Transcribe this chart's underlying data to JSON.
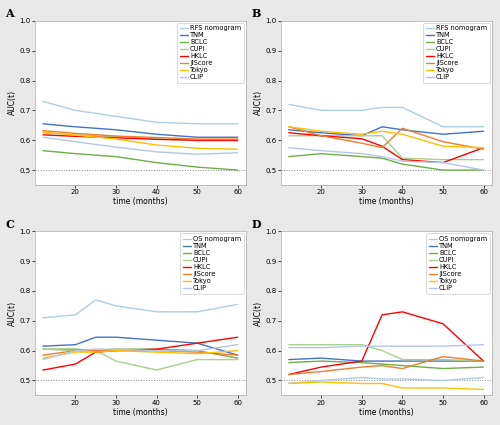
{
  "panels": [
    {
      "label": "A",
      "xlabel": "time (months)",
      "ylabel": "AUC(t)",
      "xlim": [
        10,
        62
      ],
      "ylim": [
        0.45,
        1.0
      ],
      "yticks": [
        0.5,
        0.6,
        0.7,
        0.8,
        0.9,
        1.0
      ],
      "xticks": [
        20,
        30,
        40,
        50,
        60
      ],
      "hline": 0.5,
      "series": [
        {
          "name": "RFS nomogram",
          "color": "#AECDE1",
          "lw": 1.0,
          "x": [
            12,
            20,
            30,
            40,
            50,
            60
          ],
          "y": [
            0.73,
            0.7,
            0.68,
            0.66,
            0.655,
            0.655
          ]
        },
        {
          "name": "TNM",
          "color": "#4472C4",
          "lw": 1.0,
          "x": [
            12,
            20,
            30,
            40,
            50,
            60
          ],
          "y": [
            0.655,
            0.645,
            0.635,
            0.62,
            0.61,
            0.61
          ]
        },
        {
          "name": "BCLC",
          "color": "#70AD47",
          "lw": 1.0,
          "x": [
            12,
            20,
            30,
            40,
            50,
            60
          ],
          "y": [
            0.565,
            0.555,
            0.545,
            0.525,
            0.51,
            0.5
          ]
        },
        {
          "name": "CUPI",
          "color": "#A9D18E",
          "lw": 1.0,
          "x": [
            12,
            20,
            30,
            40,
            50,
            60
          ],
          "y": [
            0.625,
            0.618,
            0.612,
            0.605,
            0.598,
            0.598
          ]
        },
        {
          "name": "HKLC",
          "color": "#FF0000",
          "lw": 1.0,
          "x": [
            12,
            20,
            30,
            40,
            50,
            60
          ],
          "y": [
            0.618,
            0.613,
            0.608,
            0.603,
            0.6,
            0.6
          ]
        },
        {
          "name": "JIScore",
          "color": "#ED7D31",
          "lw": 1.0,
          "x": [
            12,
            20,
            30,
            40,
            50,
            60
          ],
          "y": [
            0.632,
            0.623,
            0.614,
            0.609,
            0.604,
            0.604
          ]
        },
        {
          "name": "Tokyo",
          "color": "#FFC000",
          "lw": 1.0,
          "x": [
            12,
            20,
            30,
            40,
            50,
            60
          ],
          "y": [
            0.628,
            0.617,
            0.604,
            0.584,
            0.573,
            0.57
          ]
        },
        {
          "name": "CLIP",
          "color": "#B4C7E7",
          "lw": 1.0,
          "x": [
            12,
            20,
            30,
            40,
            50,
            60
          ],
          "y": [
            0.61,
            0.595,
            0.577,
            0.561,
            0.553,
            0.558
          ]
        }
      ]
    },
    {
      "label": "B",
      "xlabel": "time (months)",
      "ylabel": "AUC(t)",
      "xlim": [
        10,
        62
      ],
      "ylim": [
        0.45,
        1.0
      ],
      "yticks": [
        0.5,
        0.6,
        0.7,
        0.8,
        0.9,
        1.0
      ],
      "xticks": [
        20,
        30,
        40,
        50,
        60
      ],
      "hline": 0.5,
      "series": [
        {
          "name": "RFS nomogram",
          "color": "#AECDE1",
          "lw": 1.0,
          "x": [
            12,
            20,
            30,
            35,
            40,
            50,
            60
          ],
          "y": [
            0.72,
            0.7,
            0.7,
            0.71,
            0.71,
            0.645,
            0.645
          ]
        },
        {
          "name": "TNM",
          "color": "#4472C4",
          "lw": 1.0,
          "x": [
            12,
            20,
            30,
            35,
            40,
            50,
            60
          ],
          "y": [
            0.635,
            0.625,
            0.615,
            0.645,
            0.635,
            0.62,
            0.63
          ]
        },
        {
          "name": "BCLC",
          "color": "#70AD47",
          "lw": 1.0,
          "x": [
            12,
            20,
            30,
            35,
            40,
            50,
            60
          ],
          "y": [
            0.545,
            0.555,
            0.545,
            0.54,
            0.52,
            0.5,
            0.5
          ]
        },
        {
          "name": "CUPI",
          "color": "#A9D18E",
          "lw": 1.0,
          "x": [
            12,
            20,
            30,
            35,
            40,
            50,
            60
          ],
          "y": [
            0.615,
            0.615,
            0.615,
            0.615,
            0.54,
            0.535,
            0.535
          ]
        },
        {
          "name": "HKLC",
          "color": "#FF0000",
          "lw": 1.0,
          "x": [
            12,
            20,
            30,
            35,
            40,
            50,
            60
          ],
          "y": [
            0.625,
            0.615,
            0.605,
            0.58,
            0.535,
            0.525,
            0.575
          ]
        },
        {
          "name": "JIScore",
          "color": "#ED7D31",
          "lw": 1.0,
          "x": [
            12,
            20,
            30,
            35,
            40,
            50,
            60
          ],
          "y": [
            0.645,
            0.615,
            0.59,
            0.575,
            0.64,
            0.595,
            0.57
          ]
        },
        {
          "name": "Tokyo",
          "color": "#FFC000",
          "lw": 1.0,
          "x": [
            12,
            20,
            30,
            35,
            40,
            50,
            60
          ],
          "y": [
            0.645,
            0.63,
            0.62,
            0.63,
            0.62,
            0.58,
            0.575
          ]
        },
        {
          "name": "CLIP",
          "color": "#B4C7E7",
          "lw": 1.0,
          "x": [
            12,
            20,
            30,
            35,
            40,
            50,
            60
          ],
          "y": [
            0.575,
            0.565,
            0.555,
            0.545,
            0.53,
            0.525,
            0.5
          ]
        }
      ]
    },
    {
      "label": "C",
      "xlabel": "time (months)",
      "ylabel": "AUC(t)",
      "xlim": [
        10,
        62
      ],
      "ylim": [
        0.45,
        1.0
      ],
      "yticks": [
        0.5,
        0.6,
        0.7,
        0.8,
        0.9,
        1.0
      ],
      "xticks": [
        20,
        30,
        40,
        50,
        60
      ],
      "hline": 0.5,
      "series": [
        {
          "name": "OS nomogram",
          "color": "#AECDE1",
          "lw": 1.0,
          "x": [
            12,
            20,
            25,
            30,
            40,
            50,
            60
          ],
          "y": [
            0.71,
            0.72,
            0.77,
            0.75,
            0.73,
            0.73,
            0.755
          ]
        },
        {
          "name": "TNM",
          "color": "#4472C4",
          "lw": 1.0,
          "x": [
            12,
            20,
            25,
            30,
            40,
            50,
            60
          ],
          "y": [
            0.615,
            0.62,
            0.645,
            0.645,
            0.635,
            0.625,
            0.585
          ]
        },
        {
          "name": "BCLC",
          "color": "#70AD47",
          "lw": 1.0,
          "x": [
            12,
            20,
            25,
            30,
            40,
            50,
            60
          ],
          "y": [
            0.605,
            0.605,
            0.6,
            0.605,
            0.605,
            0.6,
            0.575
          ]
        },
        {
          "name": "CUPI",
          "color": "#A9D18E",
          "lw": 1.0,
          "x": [
            12,
            20,
            25,
            30,
            40,
            50,
            60
          ],
          "y": [
            0.605,
            0.6,
            0.6,
            0.565,
            0.535,
            0.57,
            0.57
          ]
        },
        {
          "name": "HKLC",
          "color": "#FF0000",
          "lw": 1.0,
          "x": [
            12,
            20,
            25,
            30,
            40,
            50,
            60
          ],
          "y": [
            0.535,
            0.555,
            0.595,
            0.6,
            0.605,
            0.625,
            0.645
          ]
        },
        {
          "name": "JIScore",
          "color": "#ED7D31",
          "lw": 1.0,
          "x": [
            12,
            20,
            25,
            30,
            40,
            50,
            60
          ],
          "y": [
            0.585,
            0.6,
            0.6,
            0.6,
            0.6,
            0.595,
            0.585
          ]
        },
        {
          "name": "Tokyo",
          "color": "#FFC000",
          "lw": 1.0,
          "x": [
            12,
            20,
            25,
            30,
            40,
            50,
            60
          ],
          "y": [
            0.575,
            0.595,
            0.595,
            0.6,
            0.595,
            0.59,
            0.6
          ]
        },
        {
          "name": "CLIP",
          "color": "#B4C7E7",
          "lw": 1.0,
          "x": [
            12,
            20,
            25,
            30,
            40,
            50,
            60
          ],
          "y": [
            0.57,
            0.6,
            0.605,
            0.605,
            0.6,
            0.6,
            0.62
          ]
        }
      ]
    },
    {
      "label": "D",
      "xlabel": "time (months)",
      "ylabel": "AUC(t)",
      "xlim": [
        10,
        62
      ],
      "ylim": [
        0.45,
        1.0
      ],
      "yticks": [
        0.5,
        0.6,
        0.7,
        0.8,
        0.9,
        1.0
      ],
      "xticks": [
        20,
        30,
        40,
        50,
        60
      ],
      "hline": 0.5,
      "series": [
        {
          "name": "OS nomogram",
          "color": "#AECDE1",
          "lw": 1.0,
          "x": [
            12,
            20,
            30,
            35,
            40,
            50,
            60
          ],
          "y": [
            0.49,
            0.5,
            0.51,
            0.505,
            0.505,
            0.5,
            0.51
          ]
        },
        {
          "name": "TNM",
          "color": "#4472C4",
          "lw": 1.0,
          "x": [
            12,
            20,
            30,
            35,
            40,
            50,
            60
          ],
          "y": [
            0.57,
            0.575,
            0.565,
            0.565,
            0.565,
            0.565,
            0.565
          ]
        },
        {
          "name": "BCLC",
          "color": "#70AD47",
          "lw": 1.0,
          "x": [
            12,
            20,
            30,
            35,
            40,
            50,
            60
          ],
          "y": [
            0.56,
            0.565,
            0.56,
            0.555,
            0.55,
            0.54,
            0.545
          ]
        },
        {
          "name": "CUPI",
          "color": "#A9D18E",
          "lw": 1.0,
          "x": [
            12,
            20,
            30,
            35,
            40,
            50,
            60
          ],
          "y": [
            0.62,
            0.62,
            0.62,
            0.6,
            0.57,
            0.57,
            0.565
          ]
        },
        {
          "name": "HKLC",
          "color": "#FF0000",
          "lw": 1.0,
          "x": [
            12,
            20,
            30,
            35,
            40,
            50,
            60
          ],
          "y": [
            0.52,
            0.545,
            0.565,
            0.72,
            0.73,
            0.69,
            0.565
          ]
        },
        {
          "name": "JIScore",
          "color": "#ED7D31",
          "lw": 1.0,
          "x": [
            12,
            20,
            30,
            35,
            40,
            50,
            60
          ],
          "y": [
            0.52,
            0.53,
            0.545,
            0.55,
            0.54,
            0.58,
            0.565
          ]
        },
        {
          "name": "Tokyo",
          "color": "#FFC000",
          "lw": 1.0,
          "x": [
            12,
            20,
            30,
            35,
            40,
            50,
            60
          ],
          "y": [
            0.49,
            0.495,
            0.49,
            0.49,
            0.475,
            0.475,
            0.47
          ]
        },
        {
          "name": "CLIP",
          "color": "#B4C7E7",
          "lw": 1.0,
          "x": [
            12,
            20,
            30,
            35,
            40,
            50,
            60
          ],
          "y": [
            0.61,
            0.61,
            0.615,
            0.615,
            0.615,
            0.615,
            0.62
          ]
        }
      ]
    }
  ],
  "bg_color": "#e8e8e8",
  "plot_bg": "#ffffff",
  "fontsize_label": 5.5,
  "fontsize_tick": 5.0,
  "fontsize_legend": 4.8,
  "fontsize_panel_label": 8,
  "hline_color": "#888888",
  "spine_color": "#aaaaaa"
}
